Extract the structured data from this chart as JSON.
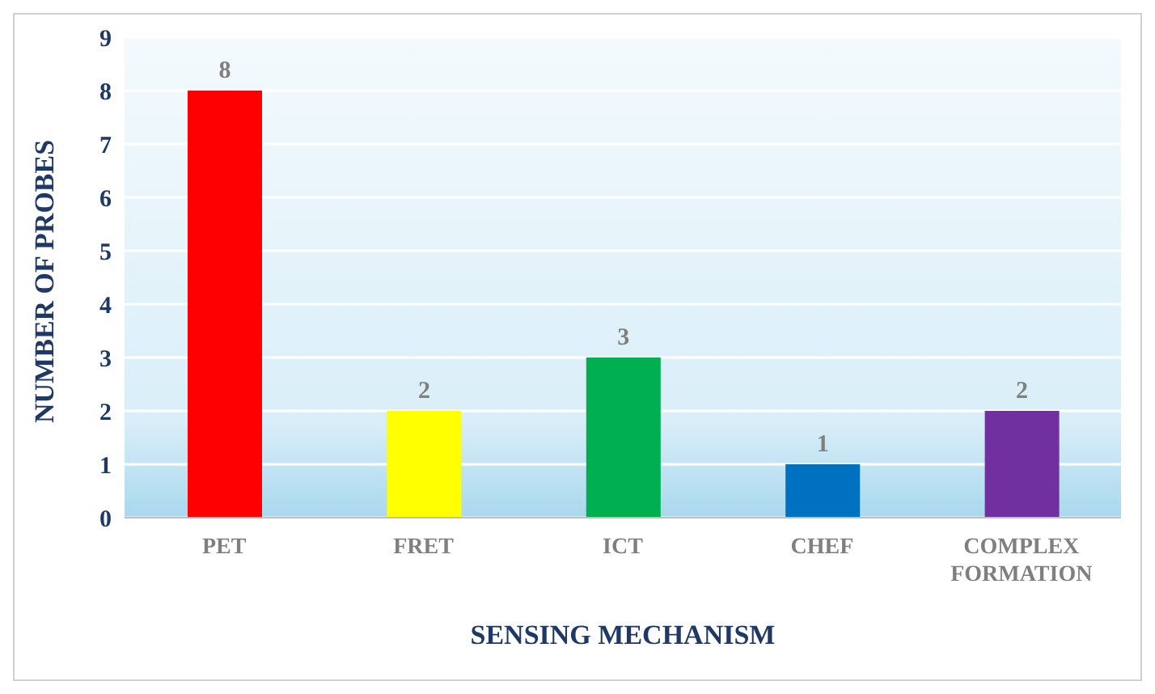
{
  "chart_data": {
    "type": "bar",
    "xlabel": "SENSING MECHANISM",
    "ylabel": "NUMBER OF PROBES",
    "categories": [
      "PET",
      "FRET",
      "ICT",
      "CHEF",
      "COMPLEX FORMATION"
    ],
    "values": [
      8,
      2,
      3,
      1,
      2
    ],
    "colors": [
      "#ff0000",
      "#ffff00",
      "#00b050",
      "#0070c0",
      "#7030a0"
    ],
    "ylim": [
      0,
      9
    ],
    "yticks": [
      0,
      1,
      2,
      3,
      4,
      5,
      6,
      7,
      8,
      9
    ],
    "grid": "y",
    "data_labels": true
  }
}
